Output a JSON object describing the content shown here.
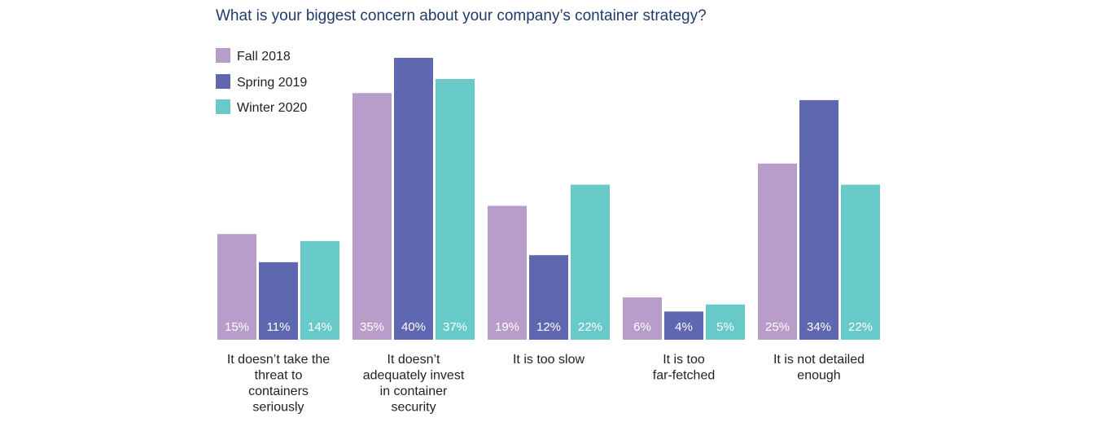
{
  "chart_data": {
    "type": "bar",
    "title": "What is your biggest concern about your company’s container strategy?",
    "xlabel": "",
    "ylabel": "",
    "ylim": [
      0,
      40
    ],
    "grid": false,
    "legend_position": "top-left",
    "categories": [
      [
        "It doesn’t take the",
        "threat to",
        "containers",
        "seriously"
      ],
      [
        "It doesn’t",
        "adequately invest",
        "in container",
        "security"
      ],
      [
        "It is too slow"
      ],
      [
        "It is too",
        "far-fetched"
      ],
      [
        "It is not detailed",
        "enough"
      ]
    ],
    "series": [
      {
        "name": "Fall 2018",
        "color": "#b89cc9",
        "values": [
          15,
          35,
          19,
          6,
          25
        ],
        "labels": [
          "15%",
          "35%",
          "19%",
          "6%",
          "25%"
        ]
      },
      {
        "name": "Spring 2019",
        "color": "#5f67b0",
        "values": [
          11,
          40,
          12,
          4,
          34
        ],
        "labels": [
          "11%",
          "40%",
          "12%",
          "4%",
          "34%"
        ]
      },
      {
        "name": "Winter 2020",
        "color": "#68c9c9",
        "values": [
          14,
          37,
          22,
          5,
          22
        ],
        "labels": [
          "14%",
          "37%",
          "22%",
          "5%",
          "22%"
        ]
      }
    ]
  }
}
